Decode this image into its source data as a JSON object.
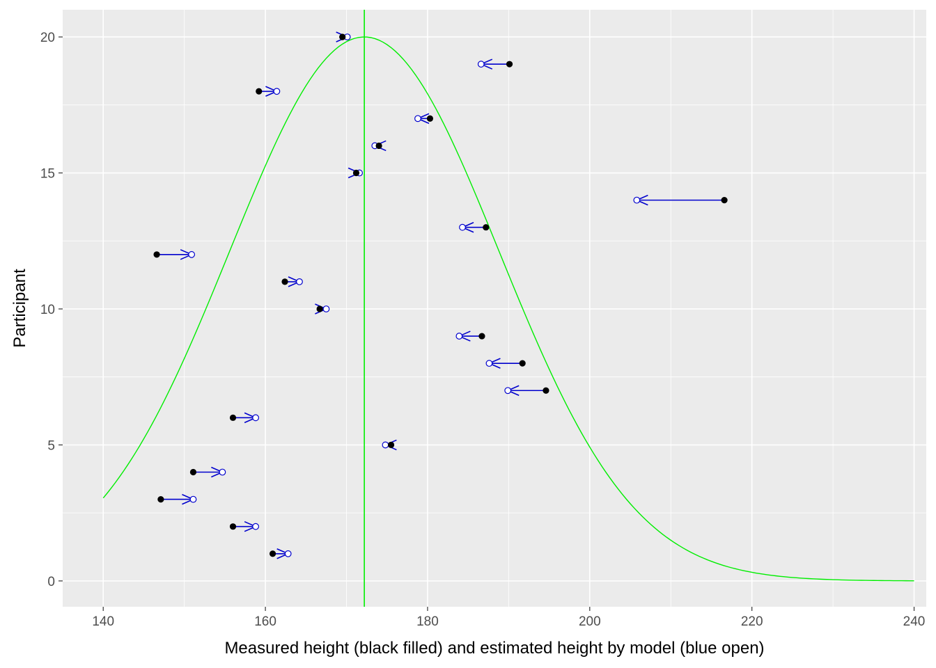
{
  "chart_data": {
    "type": "scatter",
    "xlabel": "Measured height (black filled) and estimated height by model (blue open)",
    "ylabel": "Participant",
    "xlim": [
      135,
      241.5
    ],
    "ylim": [
      -0.95,
      21
    ],
    "x_ticks": [
      140,
      160,
      180,
      200,
      220,
      240
    ],
    "x_tick_labels": [
      "140",
      "160",
      "180",
      "200",
      "220",
      "240"
    ],
    "y_ticks": [
      0,
      5,
      10,
      15,
      20
    ],
    "y_tick_labels": [
      "0",
      "5",
      "10",
      "15",
      "20"
    ],
    "grid": true,
    "panel_background": "#ebebeb",
    "grid_color": "#ffffff",
    "series": [
      {
        "name": "Measured height",
        "style": "filled",
        "color": "#000000",
        "points": [
          {
            "participant": 1,
            "height": 160.9
          },
          {
            "participant": 2,
            "height": 156.0
          },
          {
            "participant": 3,
            "height": 147.1
          },
          {
            "participant": 4,
            "height": 151.1
          },
          {
            "participant": 5,
            "height": 175.5
          },
          {
            "participant": 6,
            "height": 156.0
          },
          {
            "participant": 7,
            "height": 194.6
          },
          {
            "participant": 8,
            "height": 191.7
          },
          {
            "participant": 9,
            "height": 186.7
          },
          {
            "participant": 10,
            "height": 166.7
          },
          {
            "participant": 11,
            "height": 162.4
          },
          {
            "participant": 12,
            "height": 146.6
          },
          {
            "participant": 13,
            "height": 187.2
          },
          {
            "participant": 14,
            "height": 216.6
          },
          {
            "participant": 15,
            "height": 171.2
          },
          {
            "participant": 16,
            "height": 174.0
          },
          {
            "participant": 17,
            "height": 180.3
          },
          {
            "participant": 18,
            "height": 159.2
          },
          {
            "participant": 19,
            "height": 190.1
          },
          {
            "participant": 20,
            "height": 169.5
          }
        ]
      },
      {
        "name": "Estimated height by model",
        "style": "open",
        "color": "#0000cd",
        "points": [
          {
            "participant": 1,
            "height": 162.8
          },
          {
            "participant": 2,
            "height": 158.8
          },
          {
            "participant": 3,
            "height": 151.1
          },
          {
            "participant": 4,
            "height": 154.7
          },
          {
            "participant": 5,
            "height": 174.8
          },
          {
            "participant": 6,
            "height": 158.8
          },
          {
            "participant": 7,
            "height": 189.9
          },
          {
            "participant": 8,
            "height": 187.6
          },
          {
            "participant": 9,
            "height": 183.9
          },
          {
            "participant": 10,
            "height": 167.5
          },
          {
            "participant": 11,
            "height": 164.2
          },
          {
            "participant": 12,
            "height": 150.9
          },
          {
            "participant": 13,
            "height": 184.3
          },
          {
            "participant": 14,
            "height": 205.8
          },
          {
            "participant": 15,
            "height": 171.6
          },
          {
            "participant": 16,
            "height": 173.5
          },
          {
            "participant": 17,
            "height": 178.8
          },
          {
            "participant": 18,
            "height": 161.4
          },
          {
            "participant": 19,
            "height": 186.6
          },
          {
            "participant": 20,
            "height": 170.1
          }
        ]
      }
    ],
    "arrows": {
      "from": "Measured height",
      "to": "Estimated height by model",
      "color": "#0000cd"
    },
    "reference_curve": {
      "type": "normal",
      "mean": 172.2,
      "sd": 16.6,
      "peak": 20,
      "x_range": [
        140,
        240
      ],
      "color": "#00ee00"
    },
    "reference_vline": {
      "x": 172.2,
      "color": "#00ee00"
    }
  }
}
